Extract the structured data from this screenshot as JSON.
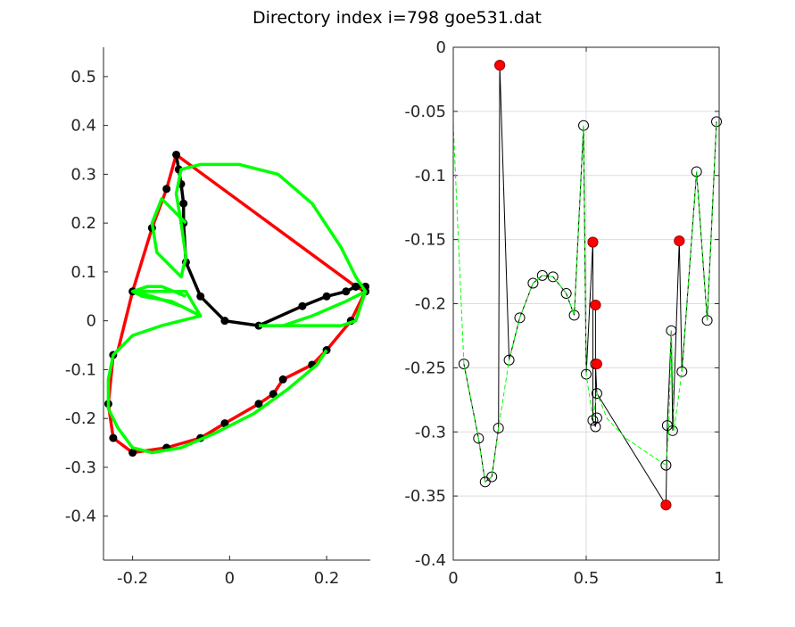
{
  "title": "Directory index i=798 goe531.dat",
  "colors": {
    "lower_surface": "#ff0000",
    "camber": "#000000",
    "curves": "#00ff00",
    "points_filled": "#ff0000",
    "axis": "#262626",
    "grid": "#dcdcdc"
  },
  "chart_data": [
    {
      "type": "line",
      "panel": "left",
      "grid": false,
      "xlim": [
        -0.26,
        0.29
      ],
      "ylim": [
        -0.49,
        0.56
      ],
      "xticks": [
        -0.2,
        0,
        0.2
      ],
      "xtick_labels": [
        "-0.2",
        "0",
        "0.2"
      ],
      "yticks": [
        0.5,
        0.4,
        0.3,
        0.2,
        0.1,
        0,
        -0.1,
        -0.2,
        -0.3,
        -0.4
      ],
      "ytick_labels": [
        "0.5",
        "0.4",
        "0.3",
        "0.2",
        "0.1",
        "0",
        "-0.1",
        "-0.2",
        "-0.3",
        "-0.4"
      ],
      "series": [
        {
          "style": "red-line",
          "x": [
            0.26,
            0.28,
            0.25,
            0.2,
            0.17,
            0.11,
            0.09,
            0.06,
            -0.01,
            -0.06,
            -0.13,
            -0.2,
            -0.24,
            -0.25,
            -0.24,
            -0.23,
            -0.2,
            -0.16,
            -0.13,
            -0.11,
            0.26
          ],
          "y": [
            0.07,
            0.06,
            0.0,
            -0.06,
            -0.09,
            -0.12,
            -0.15,
            -0.17,
            -0.21,
            -0.24,
            -0.26,
            -0.27,
            -0.24,
            -0.17,
            -0.07,
            -0.06,
            0.06,
            0.19,
            0.27,
            0.34,
            0.07
          ]
        },
        {
          "style": "black-line-markers",
          "x": [
            -0.11,
            -0.105,
            -0.1,
            -0.095,
            -0.095,
            -0.09,
            -0.06,
            -0.01,
            0.06,
            0.15,
            0.2,
            0.24,
            0.26,
            0.28,
            0.28
          ],
          "y": [
            0.34,
            0.31,
            0.28,
            0.24,
            0.2,
            0.12,
            0.05,
            0.0,
            -0.01,
            0.03,
            0.05,
            0.06,
            0.07,
            0.07,
            0.06
          ]
        },
        {
          "style": "marker-only",
          "x": [
            0.26,
            0.28,
            0.25,
            0.2,
            0.17,
            0.11,
            0.09,
            0.06,
            -0.01,
            -0.06,
            -0.13,
            -0.2,
            -0.24,
            -0.25,
            -0.24,
            -0.2,
            -0.16,
            -0.13
          ],
          "y": [
            0.07,
            0.06,
            0.0,
            -0.06,
            -0.09,
            -0.12,
            -0.15,
            -0.17,
            -0.21,
            -0.24,
            -0.26,
            -0.27,
            -0.24,
            -0.17,
            -0.07,
            0.06,
            0.19,
            0.27
          ]
        },
        {
          "style": "green-curve",
          "x": [
            -0.09,
            -0.14,
            -0.16,
            -0.15,
            -0.1,
            -0.09,
            -0.1,
            -0.11,
            -0.1,
            -0.06,
            0.02,
            0.1,
            0.17,
            0.23,
            0.26,
            0.28
          ],
          "y": [
            0.2,
            0.25,
            0.2,
            0.14,
            0.09,
            0.13,
            0.2,
            0.26,
            0.31,
            0.32,
            0.32,
            0.3,
            0.24,
            0.15,
            0.09,
            0.06
          ]
        },
        {
          "style": "green-curve",
          "x": [
            -0.09,
            -0.14,
            -0.17,
            -0.2,
            -0.16,
            -0.1,
            -0.06,
            -0.12,
            -0.18,
            -0.2,
            -0.15,
            -0.09,
            -0.06
          ],
          "y": [
            0.05,
            0.07,
            0.07,
            0.06,
            0.05,
            0.03,
            0.01,
            0.04,
            0.05,
            0.06,
            0.06,
            0.06,
            0.01
          ]
        },
        {
          "style": "green-curve",
          "x": [
            -0.06,
            -0.14,
            -0.2,
            -0.24,
            -0.25,
            -0.25,
            -0.23,
            -0.2,
            -0.16,
            -0.1,
            -0.03,
            0.05,
            0.12,
            0.18,
            0.2
          ],
          "y": [
            0.01,
            -0.01,
            -0.03,
            -0.07,
            -0.12,
            -0.18,
            -0.22,
            -0.26,
            -0.27,
            -0.26,
            -0.23,
            -0.19,
            -0.14,
            -0.09,
            -0.06
          ]
        },
        {
          "style": "green-curve",
          "x": [
            0.06,
            0.12,
            0.18,
            0.23,
            0.26,
            0.28,
            0.24,
            0.17,
            0.11,
            0.06
          ],
          "y": [
            -0.01,
            -0.01,
            -0.01,
            -0.01,
            0.0,
            0.06,
            0.04,
            0.01,
            -0.01,
            -0.01
          ]
        }
      ]
    },
    {
      "type": "line",
      "panel": "right",
      "grid": true,
      "xlim": [
        0,
        1
      ],
      "ylim": [
        -0.4,
        0
      ],
      "xticks": [
        0,
        0.5,
        1
      ],
      "xtick_labels": [
        "0",
        "0.5",
        "1"
      ],
      "yticks": [
        0,
        -0.05,
        -0.1,
        -0.15,
        -0.2,
        -0.25,
        -0.3,
        -0.35,
        -0.4
      ],
      "ytick_labels": [
        "0",
        "-0.05",
        "-0.1",
        "-0.15",
        "-0.2",
        "-0.25",
        "-0.3",
        "-0.35",
        "-0.4"
      ],
      "series": [
        {
          "style": "black-line-open-markers",
          "x": [
            0.04,
            0.095,
            0.12,
            0.145,
            0.17,
            0.175,
            0.21,
            0.25,
            0.3,
            0.335,
            0.375,
            0.425,
            0.455,
            0.49,
            0.5,
            0.525,
            0.525,
            0.535,
            0.535,
            0.535,
            0.54,
            0.8,
            0.805,
            0.82,
            0.825,
            0.85,
            0.86,
            0.915,
            0.955,
            0.99
          ],
          "y": [
            -0.247,
            -0.305,
            -0.339,
            -0.335,
            -0.297,
            -0.014,
            -0.244,
            -0.211,
            -0.184,
            -0.178,
            -0.179,
            -0.192,
            -0.209,
            -0.061,
            -0.255,
            -0.152,
            -0.291,
            -0.296,
            -0.201,
            -0.247,
            -0.27,
            -0.357,
            -0.295,
            -0.221,
            -0.299,
            -0.151,
            -0.253,
            -0.097,
            -0.213,
            -0.058
          ]
        },
        {
          "style": "green-dashed",
          "x": [
            0.0,
            0.04,
            0.095,
            0.12,
            0.145,
            0.17,
            0.21,
            0.25,
            0.3,
            0.335,
            0.375,
            0.425,
            0.455,
            0.49,
            0.5,
            0.525,
            0.54,
            0.58,
            0.65,
            0.72,
            0.8,
            0.81,
            0.82,
            0.83,
            0.86,
            0.915,
            0.955,
            0.99
          ],
          "y": [
            -0.06,
            -0.247,
            -0.305,
            -0.339,
            -0.335,
            -0.297,
            -0.244,
            -0.211,
            -0.184,
            -0.178,
            -0.179,
            -0.192,
            -0.209,
            -0.061,
            -0.255,
            -0.29,
            -0.27,
            -0.29,
            -0.305,
            -0.315,
            -0.326,
            -0.3,
            -0.221,
            -0.299,
            -0.253,
            -0.097,
            -0.213,
            -0.058
          ]
        },
        {
          "style": "red-filled-markers",
          "x": [
            0.175,
            0.525,
            0.535,
            0.54,
            0.8,
            0.85
          ],
          "y": [
            -0.014,
            -0.152,
            -0.201,
            -0.247,
            -0.357,
            -0.151
          ]
        },
        {
          "style": "open-markers",
          "x": [
            0.8,
            0.54
          ],
          "y": [
            -0.326,
            -0.289
          ]
        }
      ]
    }
  ]
}
